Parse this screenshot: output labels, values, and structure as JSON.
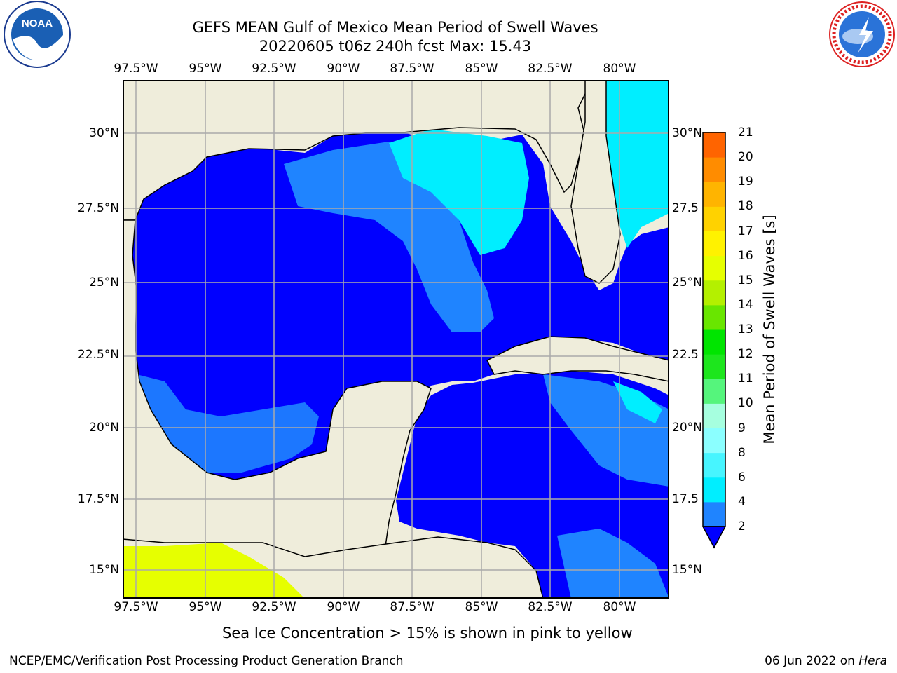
{
  "title": {
    "line1": "GEFS MEAN Gulf of Mexico Mean Period of Swell Waves",
    "line2": "20220605 t06z 240h fcst   Max: 15.43"
  },
  "map": {
    "region": "Gulf of Mexico",
    "lon_ticks": [
      "97.5°W",
      "95°W",
      "92.5°W",
      "90°W",
      "87.5°W",
      "85°W",
      "82.5°W",
      "80°W"
    ],
    "lat_ticks_left": [
      "30°N",
      "27.5°N",
      "25°N",
      "22.5°N",
      "20°N",
      "17.5°N",
      "15°N"
    ],
    "lat_ticks_right": [
      "30°N",
      "27.5",
      "25°N",
      "22.5",
      "20°N",
      "17.5",
      "15°N"
    ],
    "grid": true,
    "colors": {
      "land": "#efeddb",
      "ocean_low": "#0000ff",
      "ocean_mid": "#1f84ff",
      "ocean_high": "#00eeff",
      "grid": "#aaaaaa",
      "ice": "#e6ff00"
    }
  },
  "colorbar": {
    "label": "Mean Period of Swell Waves [s]",
    "ticks": [
      "2",
      "4",
      "6",
      "8",
      "9",
      "10",
      "11",
      "12",
      "13",
      "14",
      "15",
      "16",
      "17",
      "18",
      "19",
      "20",
      "21"
    ],
    "colors": [
      "#1f84ff",
      "#00eeff",
      "#47f5ff",
      "#8bffff",
      "#a6ffdf",
      "#55f57c",
      "#1de61d",
      "#00e500",
      "#69e600",
      "#b4f000",
      "#e6ff00",
      "#fff200",
      "#ffd200",
      "#ffb400",
      "#ff8c00",
      "#ff6400",
      "#ff3c00",
      "#ff0000"
    ],
    "extend": "min"
  },
  "notes": {
    "sea_ice": "Sea Ice Concentration > 15% is shown in pink to yellow"
  },
  "footer": {
    "left": "NCEP/EMC/Verification Post Processing Product Generation Branch",
    "date": "06 Jun 2022 on ",
    "machine": "Hera"
  },
  "logos": {
    "left": "NOAA",
    "right": "NATIONAL WEATHER SERVICE"
  }
}
